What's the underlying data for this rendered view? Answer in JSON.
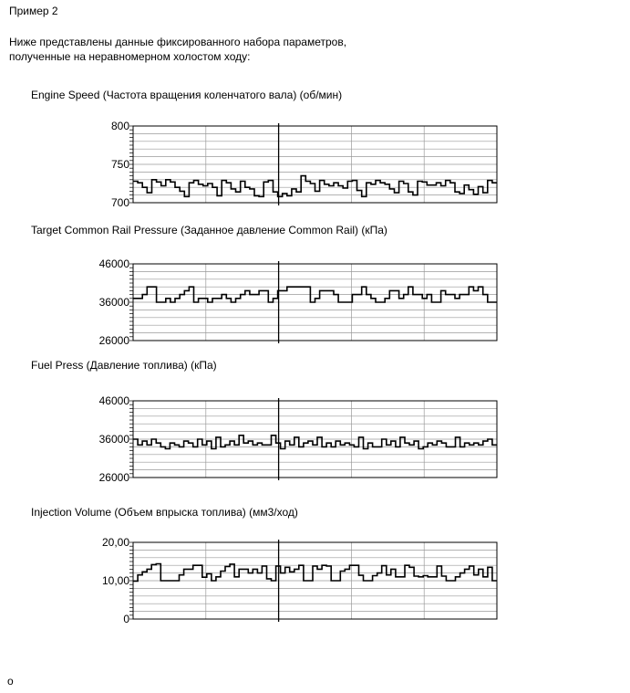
{
  "heading": "Пример 2",
  "intro_line1": "Ниже представлены данные фиксированного набора параметров,",
  "intro_line2": "полученные на неравномерном холостом ходу:",
  "footer_mark": "o",
  "chart_data": [
    {
      "type": "line",
      "title": "Engine Speed (Частота вращения коленчатого вала) (об/мин)",
      "ylim": [
        700,
        800
      ],
      "yticks": [
        700,
        750,
        800
      ],
      "tick_labels": [
        "700",
        "750",
        "800"
      ],
      "values": [
        728,
        726,
        720,
        713,
        730,
        727,
        722,
        730,
        727,
        720,
        715,
        708,
        726,
        729,
        724,
        722,
        725,
        720,
        709,
        729,
        726,
        718,
        714,
        728,
        720,
        718,
        709,
        708,
        727,
        729,
        714,
        708,
        712,
        709,
        718,
        714,
        735,
        728,
        725,
        715,
        729,
        724,
        722,
        726,
        722,
        719,
        728,
        729,
        716,
        708,
        726,
        724,
        729,
        726,
        724,
        718,
        713,
        728,
        725,
        714,
        710,
        728,
        727,
        723,
        723,
        726,
        722,
        729,
        726,
        714,
        712,
        723,
        717,
        711,
        721,
        713,
        729,
        726
      ]
    },
    {
      "type": "line",
      "title": "Target Common Rail Pressure (Заданное давление Common Rail) (кПа)",
      "ylim": [
        26000,
        46000
      ],
      "yticks": [
        26000,
        36000,
        46000
      ],
      "tick_labels": [
        "26000",
        "36000",
        "46000"
      ],
      "values": [
        37000,
        37000,
        38000,
        40000,
        40000,
        36000,
        36000,
        37000,
        36000,
        37000,
        38000,
        39000,
        40000,
        36000,
        37000,
        37000,
        36000,
        37000,
        37000,
        38000,
        37000,
        36000,
        37000,
        38000,
        39000,
        38000,
        38000,
        39000,
        39000,
        36000,
        37000,
        39000,
        39000,
        40000,
        40000,
        40000,
        40000,
        40000,
        36000,
        37000,
        39000,
        39000,
        39000,
        38000,
        36000,
        36000,
        36000,
        38000,
        38000,
        40000,
        38000,
        37000,
        36000,
        36000,
        37000,
        39000,
        39000,
        37000,
        38000,
        40000,
        38000,
        38000,
        37000,
        38000,
        36000,
        36000,
        39000,
        38000,
        38000,
        37000,
        38000,
        38000,
        40000,
        39000,
        40000,
        38000,
        36000,
        36000
      ]
    },
    {
      "type": "line",
      "title": "Fuel Press (Давление топлива) (кПа)",
      "ylim": [
        26000,
        46000
      ],
      "yticks": [
        26000,
        36000,
        46000
      ],
      "tick_labels": [
        "26000",
        "36000",
        "46000"
      ],
      "values": [
        36000,
        34500,
        35500,
        34500,
        36000,
        35000,
        34000,
        33500,
        35000,
        34500,
        34000,
        35500,
        35000,
        34000,
        36000,
        34500,
        35500,
        33500,
        36500,
        34000,
        34500,
        35500,
        34500,
        37000,
        35000,
        35500,
        34500,
        35000,
        34500,
        34500,
        37000,
        35000,
        33500,
        35500,
        34500,
        36500,
        34000,
        35000,
        35500,
        34500,
        36500,
        34000,
        35000,
        34000,
        35500,
        34500,
        35000,
        34500,
        34000,
        36500,
        33500,
        35000,
        34000,
        34000,
        36000,
        34500,
        35500,
        34000,
        36500,
        35000,
        34500,
        35500,
        33500,
        34000,
        35000,
        34500,
        35500,
        35000,
        34000,
        34000,
        36500,
        34000,
        35000,
        34500,
        35000,
        34500,
        35500,
        36000,
        34500
      ]
    },
    {
      "type": "line",
      "title": "Injection Volume (Объем впрыска топлива) (мм3/ход)",
      "ylim": [
        0,
        20
      ],
      "yticks": [
        0,
        10,
        20
      ],
      "tick_labels": [
        "0",
        "10,00",
        "20,00"
      ],
      "values": [
        9.9,
        11.5,
        12.3,
        13,
        14.2,
        14.4,
        10,
        10,
        10,
        10,
        11.5,
        13,
        13,
        14,
        14,
        10.9,
        11.8,
        10,
        11,
        12.5,
        13.7,
        14.3,
        11,
        13,
        13,
        12,
        13,
        12,
        13.8,
        10.5,
        10,
        13.8,
        12,
        13.5,
        12.3,
        13,
        14,
        10,
        10,
        13.8,
        13,
        14,
        13.8,
        10,
        10,
        12.5,
        13,
        14,
        14,
        11.4,
        10,
        10,
        11.3,
        12,
        13.9,
        11.5,
        13,
        11,
        11,
        14,
        13.5,
        11.2,
        11,
        11.3,
        11,
        11,
        13.8,
        11.2,
        10,
        10,
        11,
        12,
        13,
        13.8,
        11.5,
        13,
        11,
        13.5,
        10
      ]
    }
  ]
}
